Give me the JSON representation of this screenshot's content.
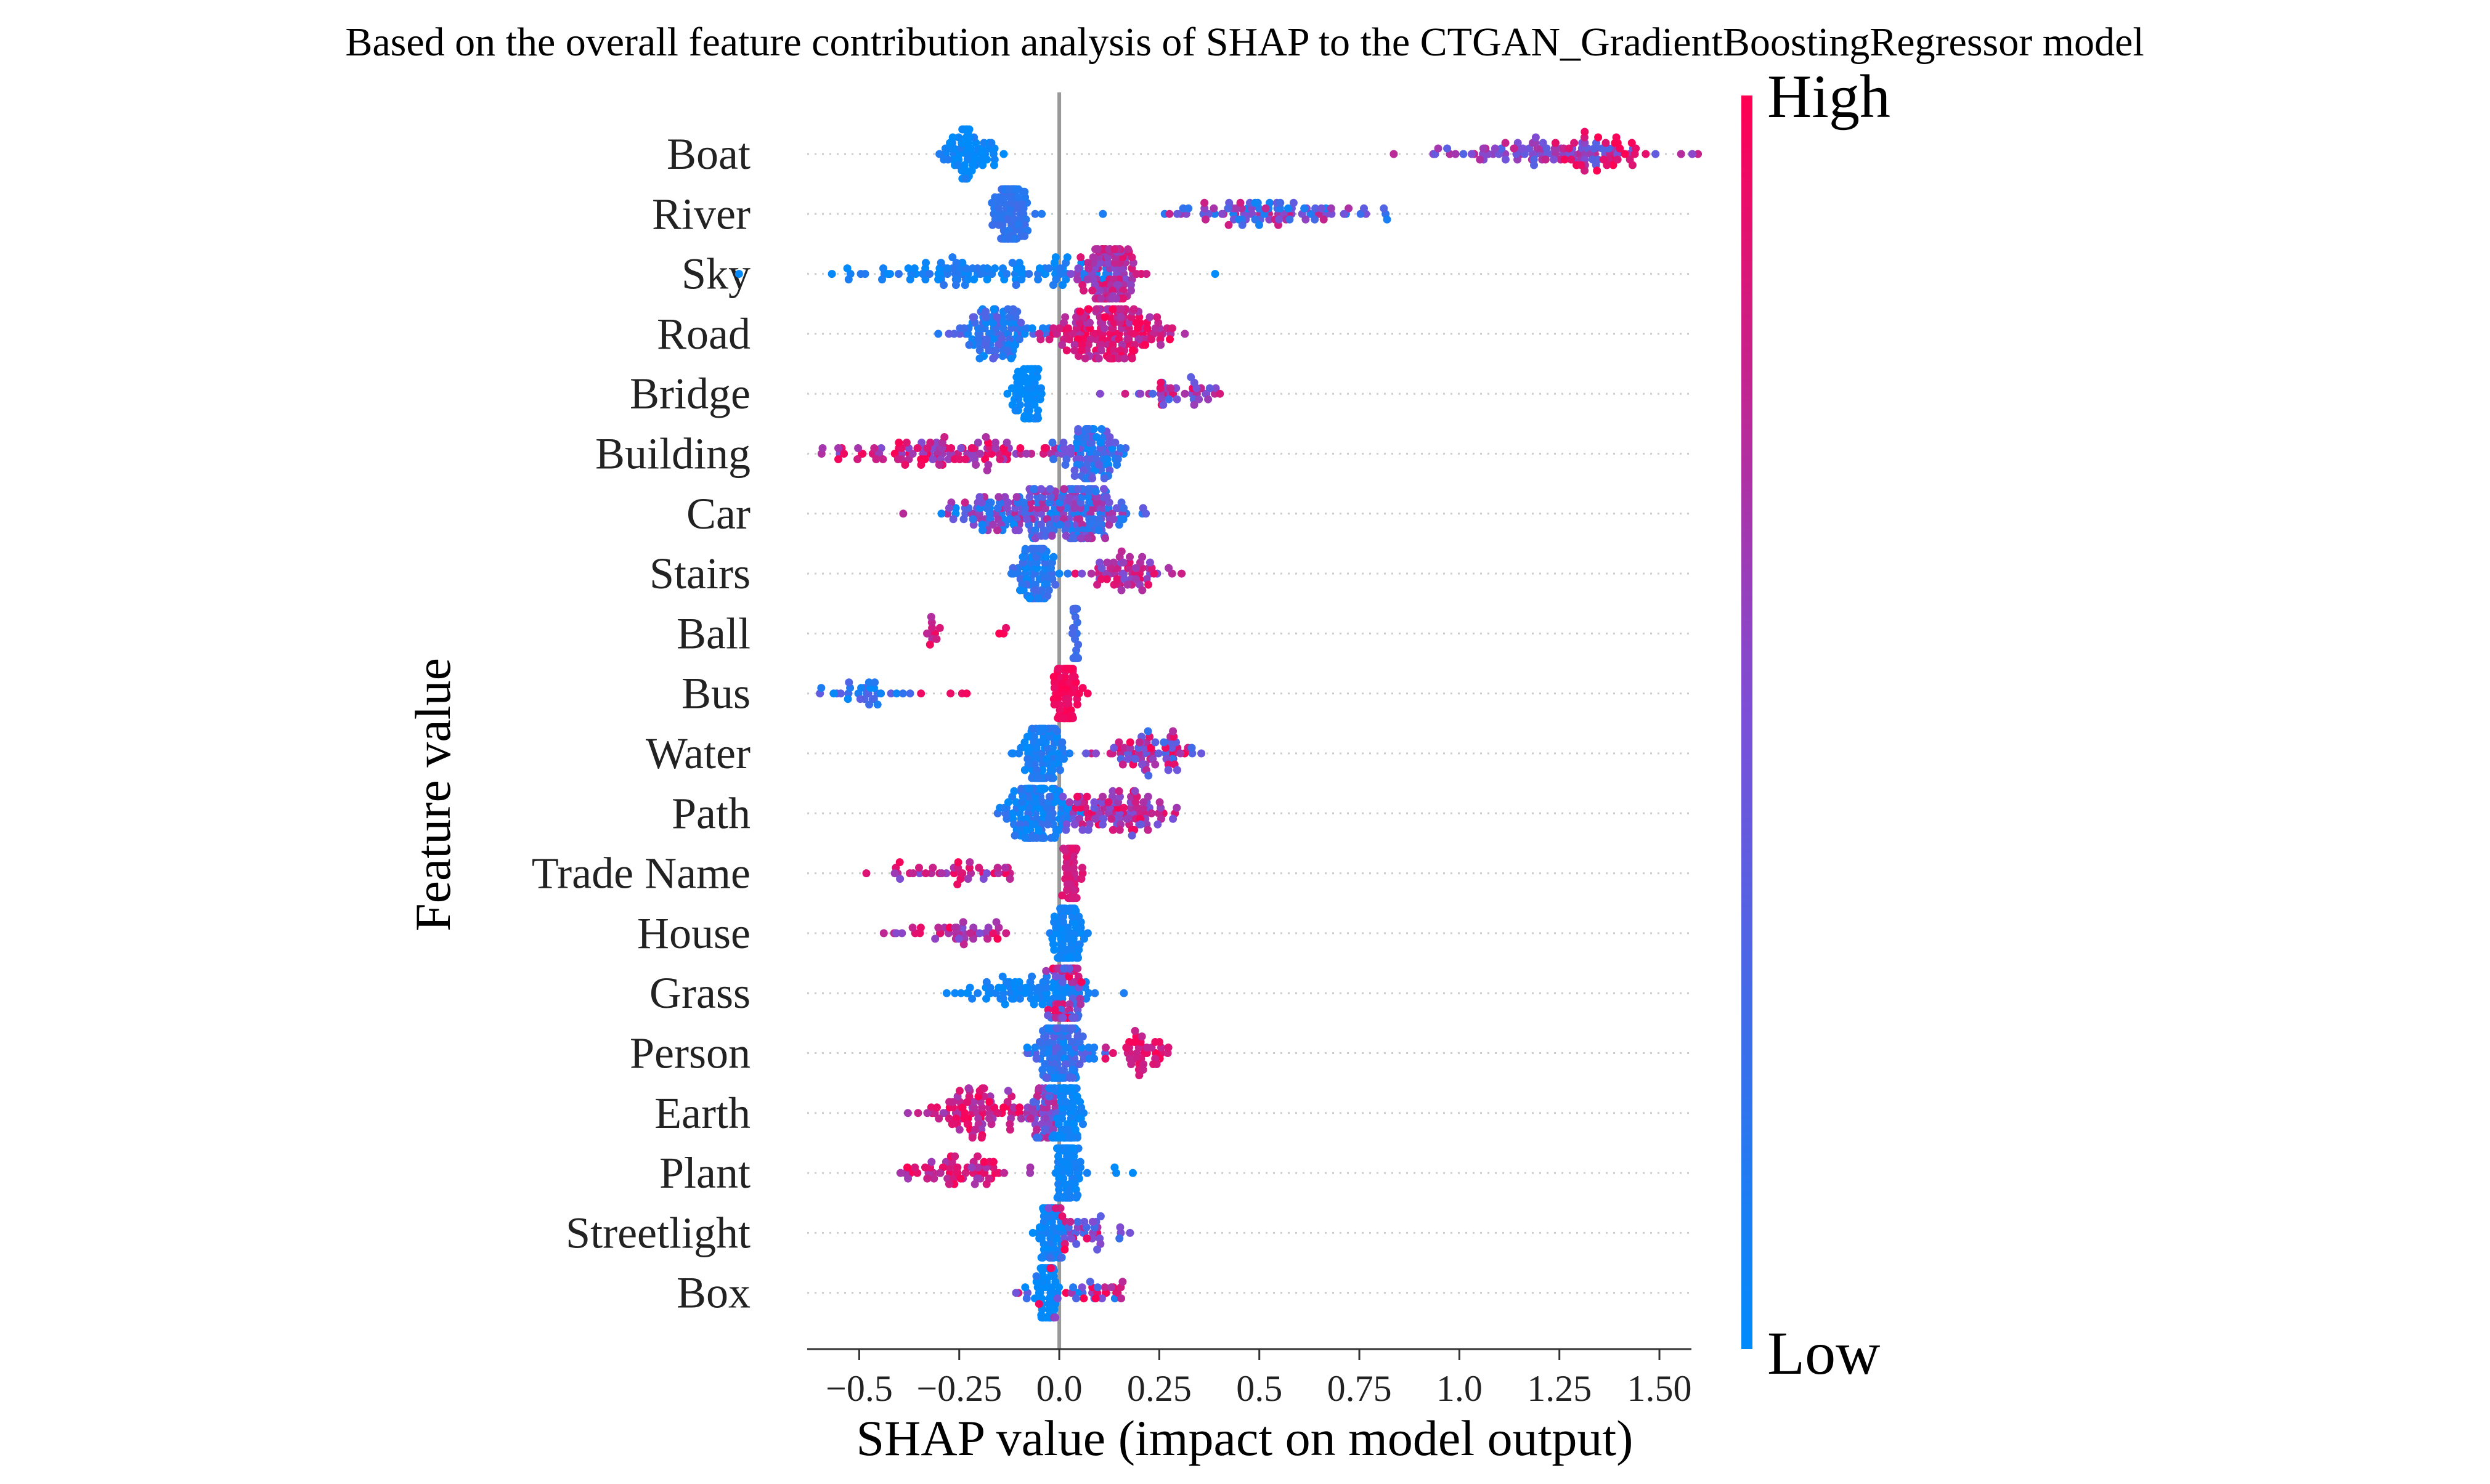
{
  "chart_data": {
    "type": "scatter",
    "subtype": "shap-beeswarm",
    "title": "Based on the overall feature contribution analysis of SHAP to the CTGAN_GradientBoostingRegressor model",
    "xlabel": "SHAP value (impact on model output)",
    "ylabel": "Feature value",
    "xlim": [
      -0.63,
      1.58
    ],
    "xticks": [
      -0.5,
      -0.25,
      0.0,
      0.25,
      0.5,
      0.75,
      1.0,
      1.25,
      1.5
    ],
    "xtick_labels": [
      "−0.5",
      "−0.25",
      "0.0",
      "0.25",
      "0.5",
      "0.75",
      "1.0",
      "1.25",
      "1.50"
    ],
    "colorbar": {
      "high_label": "High",
      "low_label": "Low",
      "high_color": "#ff0052",
      "low_color": "#008bfb"
    },
    "features": [
      {
        "name": "Boat",
        "clusters": [
          {
            "c": -0.22,
            "s": 0.04,
            "n": 70,
            "v": 0.0,
            "d": 0.13
          },
          {
            "c": 1.2,
            "s": 0.15,
            "n": 90,
            "v": 0.55,
            "d": 0.25
          },
          {
            "c": 1.36,
            "s": 0.07,
            "n": 30,
            "v": 0.95,
            "d": 0.12
          }
        ]
      },
      {
        "name": "River",
        "clusters": [
          {
            "c": -0.12,
            "s": 0.02,
            "n": 110,
            "v": 0.2,
            "d": 0.07
          },
          {
            "c": 0.55,
            "s": 0.13,
            "n": 90,
            "v": 0.45,
            "d": 0.4
          }
        ]
      },
      {
        "name": "Sky",
        "clusters": [
          {
            "c": -0.2,
            "s": 0.18,
            "n": 110,
            "v": 0.08,
            "d": 0.12
          },
          {
            "c": 0.12,
            "s": 0.04,
            "n": 120,
            "v": 0.72,
            "d": 0.2
          }
        ]
      },
      {
        "name": "Road",
        "clusters": [
          {
            "c": -0.16,
            "s": 0.05,
            "n": 100,
            "v": 0.2,
            "d": 0.2
          },
          {
            "c": 0.12,
            "s": 0.08,
            "n": 170,
            "v": 0.82,
            "d": 0.18
          }
        ]
      },
      {
        "name": "Bridge",
        "clusters": [
          {
            "c": -0.08,
            "s": 0.02,
            "n": 70,
            "v": 0.0,
            "d": 0.07
          },
          {
            "c": 0.3,
            "s": 0.07,
            "n": 40,
            "v": 0.6,
            "d": 0.35
          }
        ]
      },
      {
        "name": "Building",
        "clusters": [
          {
            "c": -0.28,
            "s": 0.14,
            "n": 110,
            "v": 0.75,
            "d": 0.25
          },
          {
            "c": 0.08,
            "s": 0.04,
            "n": 100,
            "v": 0.25,
            "d": 0.25
          }
        ]
      },
      {
        "name": "Car",
        "clusters": [
          {
            "c": -0.12,
            "s": 0.09,
            "n": 120,
            "v": 0.4,
            "d": 0.4
          },
          {
            "c": 0.06,
            "s": 0.06,
            "n": 130,
            "v": 0.4,
            "d": 0.35
          }
        ]
      },
      {
        "name": "Stairs",
        "clusters": [
          {
            "c": -0.06,
            "s": 0.025,
            "n": 100,
            "v": 0.15,
            "d": 0.15
          },
          {
            "c": 0.17,
            "s": 0.05,
            "n": 60,
            "v": 0.7,
            "d": 0.25
          }
        ]
      },
      {
        "name": "Ball",
        "clusters": [
          {
            "c": 0.04,
            "s": 0.004,
            "n": 35,
            "v": 0.25,
            "d": 0.05
          },
          {
            "c": -0.31,
            "s": 0.01,
            "n": 10,
            "v": 0.8,
            "d": 0.15
          },
          {
            "c": -0.14,
            "s": 0.004,
            "n": 3,
            "v": 0.95,
            "d": 0.05
          }
        ]
      },
      {
        "name": "Bus",
        "clusters": [
          {
            "c": -0.47,
            "s": 0.05,
            "n": 30,
            "v": 0.2,
            "d": 0.2
          },
          {
            "c": -0.24,
            "s": 0.04,
            "n": 4,
            "v": 0.95,
            "d": 0.05
          },
          {
            "c": 0.02,
            "s": 0.015,
            "n": 110,
            "v": 0.95,
            "d": 0.05
          }
        ]
      },
      {
        "name": "Water",
        "clusters": [
          {
            "c": -0.04,
            "s": 0.025,
            "n": 100,
            "v": 0.1,
            "d": 0.1
          },
          {
            "c": 0.22,
            "s": 0.06,
            "n": 70,
            "v": 0.6,
            "d": 0.4
          }
        ]
      },
      {
        "name": "Path",
        "clusters": [
          {
            "c": -0.06,
            "s": 0.04,
            "n": 140,
            "v": 0.1,
            "d": 0.15
          },
          {
            "c": 0.15,
            "s": 0.07,
            "n": 100,
            "v": 0.7,
            "d": 0.3
          }
        ]
      },
      {
        "name": "Trade Name",
        "clusters": [
          {
            "c": -0.27,
            "s": 0.08,
            "n": 40,
            "v": 0.75,
            "d": 0.25
          },
          {
            "c": 0.03,
            "s": 0.01,
            "n": 80,
            "v": 0.85,
            "d": 0.08
          }
        ]
      },
      {
        "name": "House",
        "clusters": [
          {
            "c": -0.26,
            "s": 0.07,
            "n": 40,
            "v": 0.75,
            "d": 0.25
          },
          {
            "c": 0.02,
            "s": 0.02,
            "n": 90,
            "v": 0.05,
            "d": 0.06
          }
        ]
      },
      {
        "name": "Grass",
        "clusters": [
          {
            "c": -0.09,
            "s": 0.1,
            "n": 80,
            "v": 0.05,
            "d": 0.08
          },
          {
            "c": 0.02,
            "s": 0.02,
            "n": 120,
            "v": 0.6,
            "d": 0.4
          }
        ]
      },
      {
        "name": "Person",
        "clusters": [
          {
            "c": 0.0,
            "s": 0.03,
            "n": 140,
            "v": 0.2,
            "d": 0.2
          },
          {
            "c": 0.2,
            "s": 0.04,
            "n": 40,
            "v": 0.88,
            "d": 0.12
          }
        ]
      },
      {
        "name": "Earth",
        "clusters": [
          {
            "c": -0.2,
            "s": 0.06,
            "n": 90,
            "v": 0.8,
            "d": 0.2
          },
          {
            "c": -0.04,
            "s": 0.02,
            "n": 50,
            "v": 0.5,
            "d": 0.3
          },
          {
            "c": 0.02,
            "s": 0.02,
            "n": 90,
            "v": 0.05,
            "d": 0.06
          }
        ]
      },
      {
        "name": "Plant",
        "clusters": [
          {
            "c": -0.24,
            "s": 0.07,
            "n": 60,
            "v": 0.8,
            "d": 0.2
          },
          {
            "c": 0.02,
            "s": 0.015,
            "n": 90,
            "v": 0.05,
            "d": 0.06
          },
          {
            "c": 0.2,
            "s": 0.05,
            "n": 3,
            "v": 0.0,
            "d": 0.05
          }
        ]
      },
      {
        "name": "Streetlight",
        "clusters": [
          {
            "c": -0.02,
            "s": 0.015,
            "n": 80,
            "v": 0.05,
            "d": 0.08
          },
          {
            "c": 0.06,
            "s": 0.05,
            "n": 40,
            "v": 0.6,
            "d": 0.4
          }
        ]
      },
      {
        "name": "Box",
        "clusters": [
          {
            "c": -0.03,
            "s": 0.012,
            "n": 80,
            "v": 0.0,
            "d": 0.05
          },
          {
            "c": 0.05,
            "s": 0.07,
            "n": 40,
            "v": 0.5,
            "d": 0.5
          }
        ]
      }
    ]
  }
}
